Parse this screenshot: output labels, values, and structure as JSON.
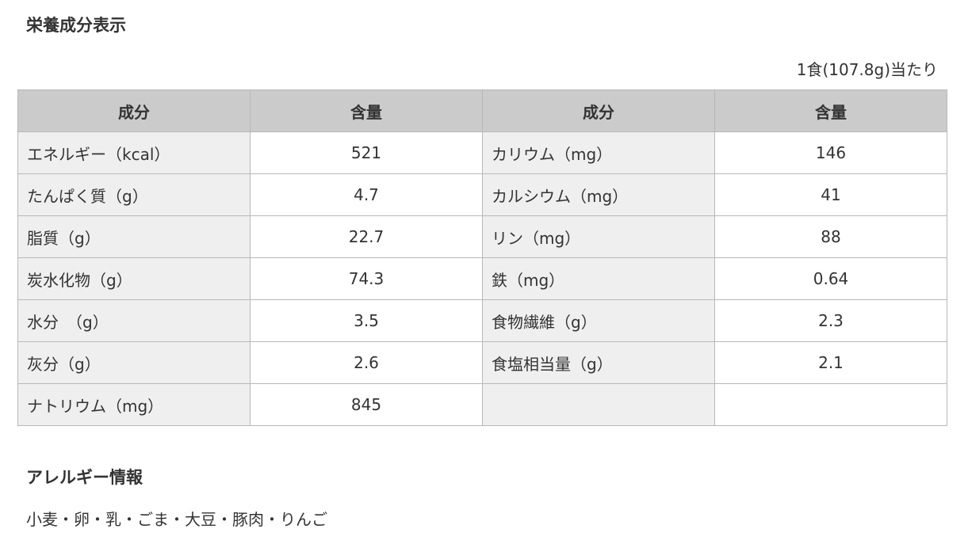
{
  "title": "栄養成分表示",
  "per_serving": "1食(107.8g)当たり",
  "table": {
    "headers": [
      "成分",
      "含量",
      "成分",
      "含量"
    ],
    "rows": [
      [
        "エネルギー（kcal）",
        "521",
        "カリウム（mg）",
        "146"
      ],
      [
        "たんぱく質（g）",
        "4.7",
        "カルシウム（mg）",
        "41"
      ],
      [
        "脂質（g）",
        "22.7",
        "リン（mg）",
        "88"
      ],
      [
        "炭水化物（g）",
        "74.3",
        "鉄（mg）",
        "0.64"
      ],
      [
        "水分　（g）",
        "3.5",
        "食物繊維（g）",
        "2.3"
      ],
      [
        "灰分（g）",
        "2.6",
        "食塩相当量（g）",
        "2.1"
      ],
      [
        "ナトリウム（mg）",
        "845",
        "",
        ""
      ]
    ]
  },
  "allergy": {
    "title": "アレルギー情報",
    "items": "小麦・卵・乳・ごま・大豆・豚肉・りんご"
  }
}
